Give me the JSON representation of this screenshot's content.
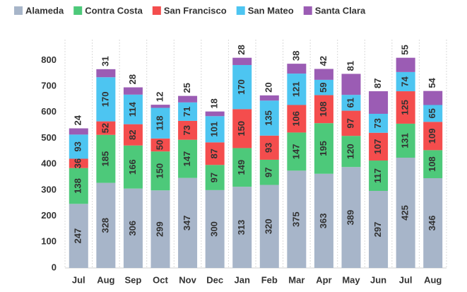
{
  "chart_data": {
    "type": "stacked_bar",
    "categories": [
      "Jul",
      "Aug",
      "Sep",
      "Oct",
      "Nov",
      "Dec",
      "Jan",
      "Feb",
      "Mar",
      "Apr",
      "May",
      "Jun",
      "Jul",
      "Aug"
    ],
    "series": [
      {
        "name": "Alameda",
        "color": "#a7b5c9",
        "label_color": "#333333",
        "values": [
          247,
          328,
          306,
          299,
          347,
          300,
          313,
          320,
          375,
          363,
          389,
          297,
          425,
          346
        ]
      },
      {
        "name": "Contra Costa",
        "color": "#4dc97a",
        "label_color": "#333333",
        "values": [
          138,
          185,
          166,
          150,
          147,
          97,
          149,
          97,
          147,
          195,
          120,
          117,
          131,
          108
        ]
      },
      {
        "name": "San Francisco",
        "color": "#f44d4d",
        "label_color": "#ffffff",
        "values": [
          36,
          52,
          82,
          50,
          73,
          87,
          150,
          93,
          106,
          108,
          97,
          107,
          125,
          109
        ]
      },
      {
        "name": "San Mateo",
        "color": "#4dc5f1",
        "label_color": "#333333",
        "values": [
          93,
          170,
          114,
          118,
          71,
          101,
          170,
          135,
          121,
          59,
          61,
          73,
          74,
          65
        ]
      },
      {
        "name": "Santa Clara",
        "color": "#9b5cb4",
        "label_color": "#333333",
        "values": [
          24,
          31,
          28,
          12,
          25,
          18,
          28,
          20,
          38,
          42,
          81,
          87,
          55,
          54
        ]
      }
    ],
    "ylim": [
      0,
      880
    ],
    "yticks": [
      0,
      100,
      200,
      300,
      400,
      500,
      600,
      700,
      800
    ],
    "grid": "x",
    "legend": "top"
  }
}
